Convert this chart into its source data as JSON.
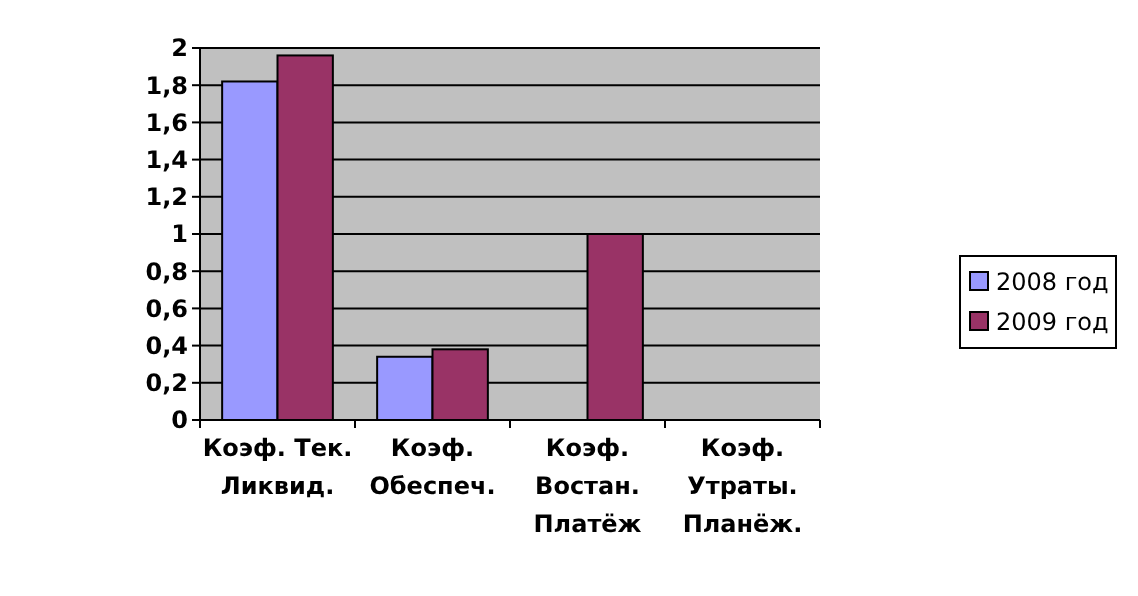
{
  "chart_data": {
    "type": "bar",
    "categories": [
      "Коэф. Тек. Ликвид.",
      "Коэф. Обеспеч.",
      "Коэф. Востан. Платёж",
      "Коэф. Утраты. Планёж."
    ],
    "series": [
      {
        "name": "2008 год",
        "color": "#9999ff",
        "values": [
          1.82,
          0.34,
          0,
          0
        ]
      },
      {
        "name": "2009 год",
        "color": "#993366",
        "values": [
          1.96,
          0.38,
          1.0,
          0
        ]
      }
    ],
    "ylim": [
      0,
      2
    ],
    "yticks": [
      0,
      {
        "value": 0.2,
        "label": "0,2"
      },
      {
        "value": 0.4,
        "label": "0,4"
      },
      {
        "value": 0.6,
        "label": "0,6"
      },
      {
        "value": 0.8,
        "label": "0,8"
      },
      1,
      {
        "value": 1.2,
        "label": "1,2"
      },
      {
        "value": 1.4,
        "label": "1,4"
      },
      {
        "value": 1.6,
        "label": "1,6"
      },
      {
        "value": 1.8,
        "label": "1,8"
      },
      2
    ],
    "grid": "y",
    "legend": "right"
  }
}
